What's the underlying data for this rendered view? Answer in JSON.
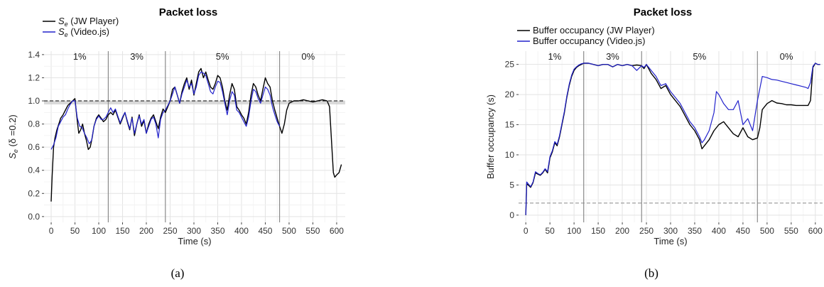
{
  "chart_data": [
    {
      "type": "line",
      "panel": "(a)",
      "title": "Packet loss",
      "xlabel": "Time (s)",
      "ylabel_main": "S",
      "ylabel_sub": "e",
      "ylabel_rest": "(δ =0.2)",
      "xlim": [
        -15,
        618
      ],
      "ylim": [
        -0.05,
        1.43
      ],
      "xticks": [
        0,
        50,
        100,
        150,
        200,
        250,
        300,
        350,
        400,
        450,
        500,
        550,
        600
      ],
      "yticks": [
        "0.0",
        "0.2",
        "0.4",
        "0.6",
        "0.8",
        "1.0",
        "1.2",
        "1.4"
      ],
      "vlines": [
        120,
        240,
        480
      ],
      "hline": 1.0,
      "band": [
        0.97,
        1.0
      ],
      "phases": [
        {
          "label": "1%",
          "x": 60
        },
        {
          "label": "3%",
          "x": 180
        },
        {
          "label": "5%",
          "x": 360
        },
        {
          "label": "0%",
          "x": 540
        }
      ],
      "legend": [
        {
          "label_main": "S",
          "label_sub": "e",
          "label_rest": "(JW Player)",
          "color": "#000000"
        },
        {
          "label_main": "S",
          "label_sub": "e",
          "label_rest": "(Video.js)",
          "color": "#2222cc"
        }
      ],
      "series": [
        {
          "color": "#000000",
          "x": [
            0,
            2,
            5,
            8,
            12,
            16,
            20,
            25,
            30,
            35,
            40,
            45,
            50,
            55,
            58,
            62,
            66,
            70,
            74,
            78,
            82,
            86,
            90,
            95,
            100,
            105,
            110,
            115,
            120,
            125,
            130,
            135,
            140,
            145,
            150,
            155,
            160,
            165,
            170,
            175,
            180,
            185,
            190,
            195,
            200,
            205,
            210,
            215,
            220,
            225,
            230,
            235,
            240,
            245,
            250,
            255,
            260,
            265,
            270,
            275,
            280,
            285,
            290,
            295,
            300,
            305,
            310,
            315,
            320,
            325,
            330,
            335,
            340,
            345,
            350,
            355,
            360,
            365,
            370,
            375,
            380,
            385,
            390,
            395,
            400,
            405,
            410,
            415,
            420,
            425,
            430,
            435,
            440,
            445,
            450,
            455,
            460,
            465,
            470,
            475,
            480,
            485,
            490,
            495,
            500,
            510,
            520,
            530,
            540,
            550,
            560,
            570,
            580,
            585,
            590,
            593,
            596,
            600,
            605,
            610
          ],
          "y": [
            0.13,
            0.35,
            0.6,
            0.68,
            0.75,
            0.8,
            0.85,
            0.88,
            0.92,
            0.96,
            0.98,
            1.0,
            1.02,
            0.82,
            0.72,
            0.75,
            0.8,
            0.72,
            0.66,
            0.58,
            0.6,
            0.68,
            0.78,
            0.85,
            0.88,
            0.85,
            0.82,
            0.84,
            0.88,
            0.9,
            0.88,
            0.92,
            0.86,
            0.8,
            0.85,
            0.9,
            0.82,
            0.75,
            0.86,
            0.7,
            0.8,
            0.88,
            0.78,
            0.83,
            0.72,
            0.8,
            0.85,
            0.88,
            0.82,
            0.76,
            0.86,
            0.93,
            0.9,
            0.95,
            1.0,
            1.1,
            1.12,
            1.05,
            0.98,
            1.08,
            1.15,
            1.2,
            1.1,
            1.18,
            1.05,
            1.15,
            1.25,
            1.28,
            1.2,
            1.25,
            1.18,
            1.12,
            1.1,
            1.15,
            1.22,
            1.2,
            1.12,
            1.0,
            0.92,
            1.05,
            1.15,
            1.1,
            0.95,
            0.92,
            0.88,
            0.85,
            0.8,
            0.9,
            1.05,
            1.15,
            1.12,
            1.05,
            1.0,
            1.1,
            1.2,
            1.15,
            1.12,
            1.0,
            0.92,
            0.85,
            0.78,
            0.72,
            0.8,
            0.92,
            0.98,
            1.0,
            1.0,
            1.01,
            1.0,
            0.99,
            1.0,
            1.01,
            1.0,
            0.95,
            0.6,
            0.38,
            0.34,
            0.36,
            0.38,
            0.45
          ]
        },
        {
          "color": "#2222cc",
          "x": [
            0,
            5,
            10,
            15,
            20,
            25,
            30,
            35,
            40,
            45,
            50,
            55,
            60,
            65,
            70,
            75,
            80,
            85,
            90,
            95,
            100,
            105,
            110,
            115,
            120,
            125,
            130,
            135,
            140,
            145,
            150,
            155,
            160,
            165,
            170,
            175,
            180,
            185,
            190,
            195,
            200,
            205,
            210,
            215,
            220,
            225,
            230,
            235,
            240,
            245,
            250,
            255,
            260,
            265,
            270,
            275,
            280,
            285,
            290,
            295,
            300,
            305,
            310,
            315,
            320,
            325,
            330,
            335,
            340,
            345,
            350,
            355,
            360,
            365,
            370,
            375,
            380,
            385,
            390,
            395,
            400,
            405,
            410,
            415,
            420,
            425,
            430,
            435,
            440,
            445,
            450,
            455,
            460,
            465,
            470,
            475,
            480
          ],
          "y": [
            0.58,
            0.62,
            0.68,
            0.78,
            0.82,
            0.86,
            0.88,
            0.93,
            0.97,
            1.0,
            1.0,
            0.85,
            0.78,
            0.77,
            0.72,
            0.68,
            0.63,
            0.66,
            0.78,
            0.84,
            0.87,
            0.84,
            0.84,
            0.86,
            0.9,
            0.94,
            0.9,
            0.93,
            0.87,
            0.81,
            0.86,
            0.9,
            0.83,
            0.76,
            0.85,
            0.72,
            0.8,
            0.87,
            0.8,
            0.84,
            0.72,
            0.78,
            0.84,
            0.86,
            0.8,
            0.68,
            0.84,
            0.9,
            0.92,
            0.96,
            1.0,
            1.06,
            1.12,
            1.05,
            0.98,
            1.06,
            1.12,
            1.18,
            1.12,
            1.15,
            1.06,
            1.12,
            1.22,
            1.25,
            1.24,
            1.22,
            1.15,
            1.08,
            1.06,
            1.12,
            1.17,
            1.16,
            1.08,
            0.98,
            0.88,
            1.0,
            1.08,
            1.05,
            0.92,
            0.9,
            0.86,
            0.82,
            0.78,
            0.86,
            1.0,
            1.1,
            1.08,
            1.02,
            0.98,
            1.05,
            1.12,
            1.1,
            1.05,
            0.95,
            0.88,
            0.82,
            0.78
          ]
        }
      ]
    },
    {
      "type": "line",
      "panel": "(b)",
      "title": "Packet loss",
      "xlabel": "Time (s)",
      "ylabel": "Buffer occupancy (s)",
      "xlim": [
        -15,
        615
      ],
      "ylim": [
        -1.2,
        27.2
      ],
      "xticks": [
        0,
        50,
        100,
        150,
        200,
        250,
        300,
        350,
        400,
        450,
        500,
        550,
        600
      ],
      "yticks": [
        "0",
        "5",
        "10",
        "15",
        "20",
        "25"
      ],
      "vlines": [
        120,
        240,
        480
      ],
      "hline": 2,
      "phases": [
        {
          "label": "1%",
          "x": 60
        },
        {
          "label": "3%",
          "x": 180
        },
        {
          "label": "5%",
          "x": 360
        },
        {
          "label": "0%",
          "x": 540
        }
      ],
      "legend": [
        {
          "label": "Buffer occupancy (JW Player)",
          "color": "#000000"
        },
        {
          "label": "Buffer occupancy (Video.js)",
          "color": "#2222cc"
        }
      ],
      "series": [
        {
          "color": "#000000",
          "x": [
            0,
            2,
            5,
            10,
            15,
            20,
            25,
            30,
            35,
            40,
            45,
            50,
            55,
            60,
            65,
            70,
            75,
            80,
            85,
            90,
            95,
            100,
            105,
            110,
            115,
            120,
            130,
            140,
            150,
            160,
            170,
            180,
            190,
            200,
            210,
            220,
            230,
            240,
            245,
            250,
            260,
            270,
            280,
            290,
            300,
            310,
            320,
            330,
            340,
            350,
            360,
            365,
            370,
            380,
            390,
            400,
            410,
            420,
            430,
            440,
            450,
            460,
            470,
            480,
            485,
            490,
            500,
            510,
            520,
            530,
            540,
            550,
            560,
            570,
            580,
            585,
            590,
            595,
            600,
            605,
            610
          ],
          "y": [
            0,
            5.2,
            5,
            4.6,
            5.4,
            7,
            6.8,
            6.6,
            7,
            7.6,
            7,
            9.5,
            10.5,
            12,
            11.5,
            13,
            15,
            17,
            19.5,
            21.5,
            23,
            24,
            24.5,
            24.8,
            25,
            25.2,
            25.2,
            25,
            24.8,
            25,
            25,
            24.6,
            25,
            24.8,
            25,
            24.8,
            24.9,
            24.8,
            24.3,
            25,
            23.5,
            22.5,
            21,
            21.5,
            20,
            19,
            18,
            16.5,
            15,
            14,
            12.5,
            11,
            11.5,
            12.5,
            14,
            15,
            15.5,
            14.5,
            13.5,
            13,
            14.5,
            13,
            12.5,
            12.8,
            14.5,
            17.5,
            18.5,
            19,
            18.6,
            18.5,
            18.3,
            18.3,
            18.2,
            18.2,
            18.2,
            18.2,
            19,
            24.5,
            25.2,
            25,
            25
          ]
        },
        {
          "color": "#2222cc",
          "x": [
            0,
            2,
            5,
            10,
            15,
            20,
            25,
            30,
            35,
            40,
            45,
            50,
            55,
            60,
            65,
            70,
            75,
            80,
            85,
            90,
            95,
            100,
            105,
            110,
            115,
            120,
            130,
            140,
            150,
            160,
            170,
            180,
            190,
            200,
            210,
            220,
            230,
            240,
            245,
            250,
            260,
            270,
            280,
            290,
            300,
            310,
            320,
            330,
            340,
            350,
            360,
            365,
            370,
            380,
            390,
            395,
            400,
            410,
            420,
            430,
            440,
            450,
            460,
            470,
            480,
            485,
            490,
            500,
            510,
            520,
            530,
            540,
            550,
            560,
            570,
            580,
            585,
            590,
            595,
            600,
            605,
            610
          ],
          "y": [
            0,
            5.5,
            5.2,
            4.7,
            5.5,
            7.2,
            6.9,
            6.7,
            7.1,
            7.7,
            7.2,
            9.7,
            10.7,
            12.2,
            11.7,
            13.2,
            15.2,
            17.2,
            19.7,
            21.7,
            23.2,
            24.2,
            24.6,
            24.9,
            25.1,
            25.2,
            25.2,
            25,
            24.8,
            25,
            25,
            24.6,
            25,
            24.8,
            25,
            24.8,
            24,
            24.8,
            24.5,
            25,
            24,
            23,
            21.5,
            21.8,
            20.5,
            19.5,
            18.5,
            17,
            15.5,
            14.5,
            13,
            12,
            12.5,
            14,
            17,
            20.5,
            20,
            18.5,
            17.5,
            17.5,
            19,
            15,
            16,
            14,
            19,
            21,
            23,
            22.8,
            22.5,
            22.4,
            22.2,
            22,
            21.8,
            21.6,
            21.4,
            21.2,
            21,
            22,
            24.7,
            25.2,
            25,
            25
          ]
        }
      ]
    }
  ],
  "captions": [
    "(a)",
    "(b)"
  ]
}
